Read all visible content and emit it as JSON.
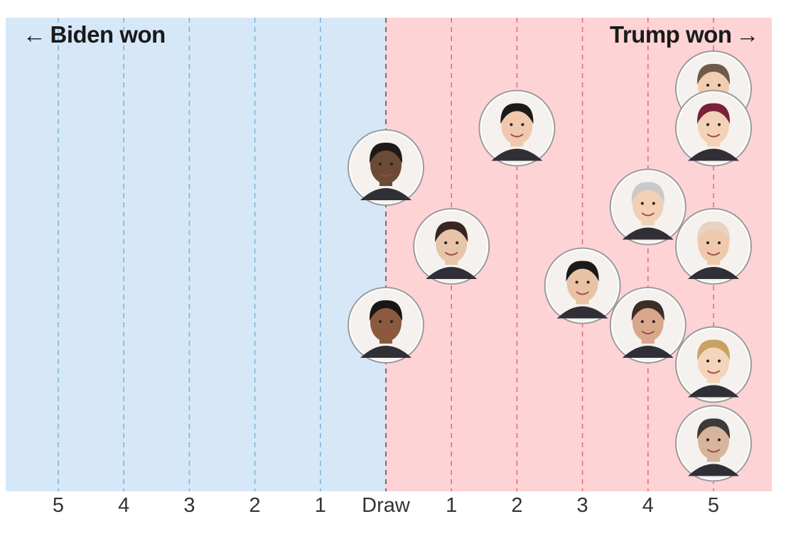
{
  "chart_data": {
    "type": "scatter",
    "title_left": "Biden won",
    "title_right": "Trump won",
    "xlabel": "",
    "ylabel": "",
    "xlim": [
      -5.5,
      5.5
    ],
    "ticks": [
      {
        "value": -5,
        "label": "5"
      },
      {
        "value": -4,
        "label": "4"
      },
      {
        "value": -3,
        "label": "3"
      },
      {
        "value": -2,
        "label": "2"
      },
      {
        "value": -1,
        "label": "1"
      },
      {
        "value": 0,
        "label": "Draw"
      },
      {
        "value": 1,
        "label": "1"
      },
      {
        "value": 2,
        "label": "2"
      },
      {
        "value": 3,
        "label": "3"
      },
      {
        "value": 4,
        "label": "4"
      },
      {
        "value": 5,
        "label": "5"
      }
    ],
    "points": [
      {
        "x": 0,
        "row": 2
      },
      {
        "x": 0,
        "row": 6
      },
      {
        "x": 1,
        "row": 4
      },
      {
        "x": 2,
        "row": 1
      },
      {
        "x": 3,
        "row": 5
      },
      {
        "x": 4,
        "row": 3
      },
      {
        "x": 4,
        "row": 6
      },
      {
        "x": 5,
        "row": 0
      },
      {
        "x": 5,
        "row": 1
      },
      {
        "x": 5,
        "row": 4
      },
      {
        "x": 5,
        "row": 7
      },
      {
        "x": 5,
        "row": 9
      }
    ],
    "colors": {
      "biden_bg": "#d6e8f7",
      "trump_bg": "#fdd3d6",
      "biden_line": "#7fb4dc",
      "trump_line": "#e0707a",
      "draw_line": "#555555"
    }
  }
}
